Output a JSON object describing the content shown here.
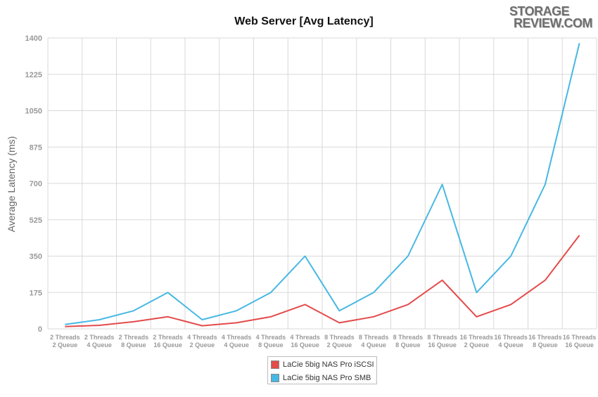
{
  "logo": {
    "line1": "STORAGE",
    "line2": "REVIEW.COM"
  },
  "colors": {
    "iscsi": "#e44b4b",
    "smb": "#47b8e3",
    "grid": "#d9d9d9",
    "tick_text": "#999999",
    "axis_label": "#666666"
  },
  "chart_data": {
    "type": "line",
    "title": "Web Server [Avg Latency]",
    "xlabel": "",
    "ylabel": "Average Latency (ms)",
    "ylim": [
      0,
      1400
    ],
    "yticks": [
      0,
      175,
      350,
      525,
      700,
      875,
      1050,
      1225,
      1400
    ],
    "grid": true,
    "legend_position": "bottom",
    "categories": [
      [
        "2 Threads",
        "2 Queue"
      ],
      [
        "2 Threads",
        "4 Queue"
      ],
      [
        "2 Threads",
        "8 Queue"
      ],
      [
        "2 Threads",
        "16 Queue"
      ],
      [
        "4 Threads",
        "2 Queue"
      ],
      [
        "4 Threads",
        "4 Queue"
      ],
      [
        "4 Threads",
        "8 Queue"
      ],
      [
        "4 Threads",
        "16 Queue"
      ],
      [
        "8 Threads",
        "2 Queue"
      ],
      [
        "8 Threads",
        "4 Queue"
      ],
      [
        "8 Threads",
        "8 Queue"
      ],
      [
        "8 Threads",
        "16 Queue"
      ],
      [
        "16 Threads",
        "2 Queue"
      ],
      [
        "16 Threads",
        "4 Queue"
      ],
      [
        "16 Threads",
        "8 Queue"
      ],
      [
        "16 Threads",
        "16 Queue"
      ]
    ],
    "series": [
      {
        "name": "LaCie 5big NAS Pro iSCSI",
        "color": "#e44b4b",
        "values": [
          11,
          17,
          34,
          58,
          15,
          29,
          58,
          117,
          29,
          58,
          117,
          234,
          58,
          117,
          234,
          450
        ]
      },
      {
        "name": "LaCie 5big NAS Pro SMB",
        "color": "#47b8e3",
        "values": [
          21,
          44,
          87,
          175,
          44,
          87,
          175,
          350,
          87,
          175,
          350,
          695,
          175,
          350,
          695,
          1375
        ]
      }
    ]
  }
}
